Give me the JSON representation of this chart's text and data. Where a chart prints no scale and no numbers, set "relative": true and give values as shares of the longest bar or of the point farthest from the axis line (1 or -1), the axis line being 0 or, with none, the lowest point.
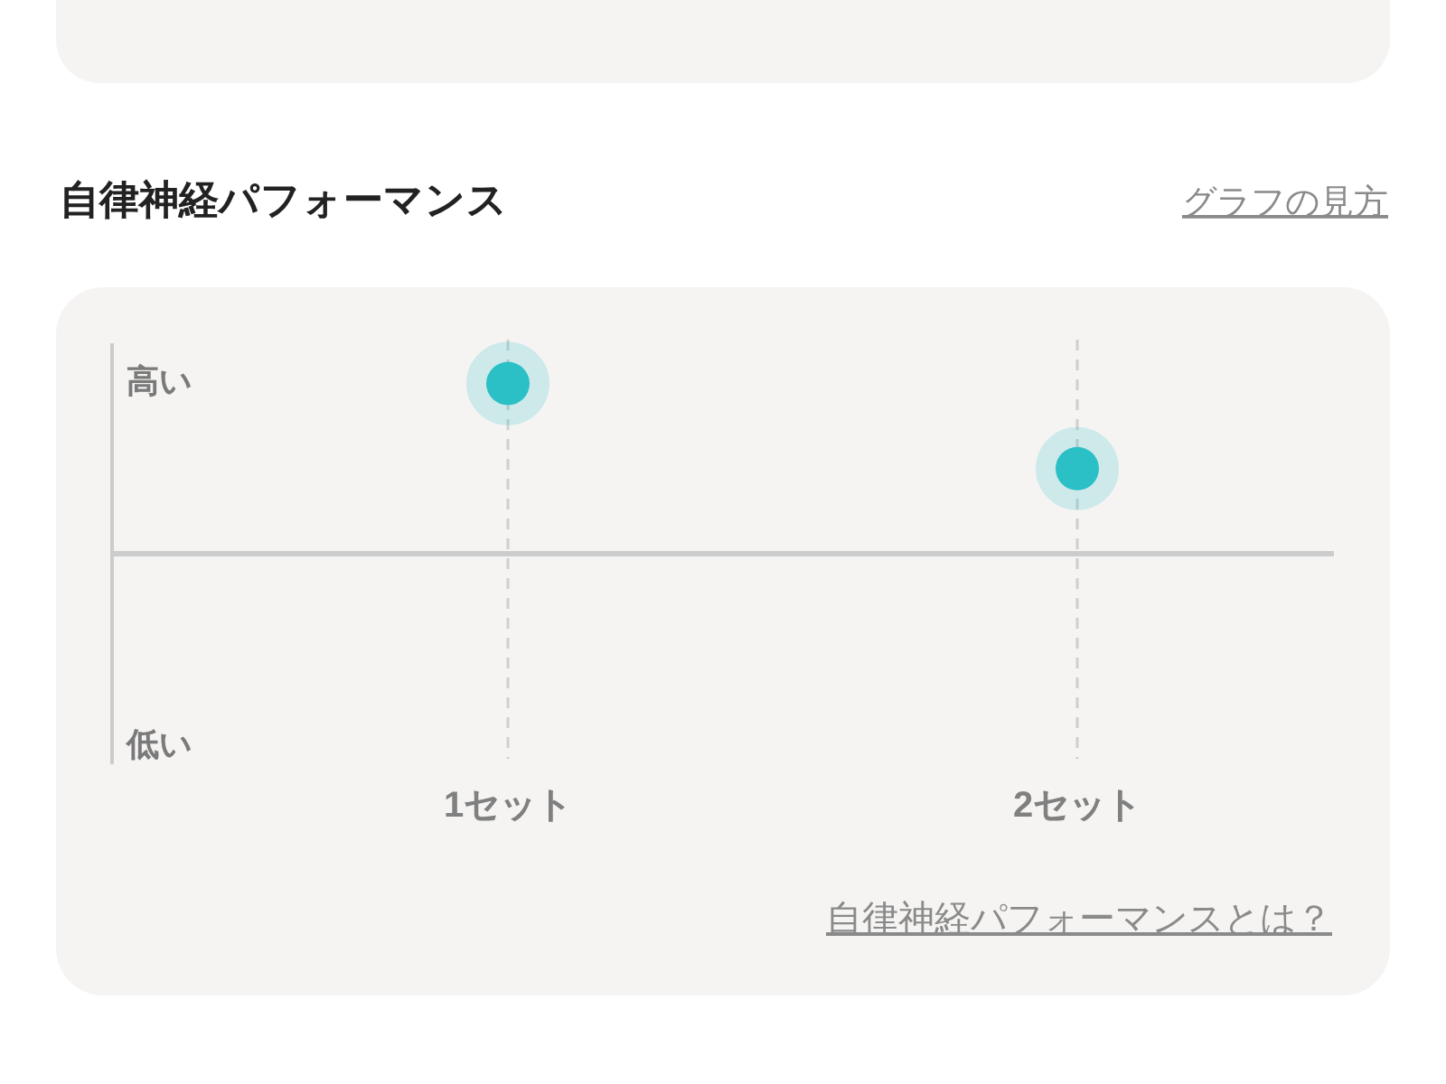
{
  "chart_data": {
    "type": "scatter",
    "title": "自律神経パフォーマンス",
    "categories": [
      "1セット",
      "2セット"
    ],
    "values": [
      1,
      0.5
    ],
    "relative": true,
    "color": "#2bbfc6",
    "marker": "circle",
    "grid": "x",
    "annotations": [
      "高い",
      "低い",
      "グラフの見方",
      "自律神経パフォーマンスとは？"
    ]
  }
}
